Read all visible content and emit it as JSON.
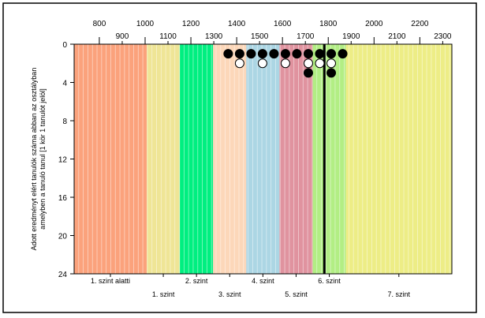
{
  "chart_data": {
    "type": "scatter",
    "title": "",
    "xlabel": "",
    "ylabel_lines": [
      "Adott eredményt elért tanulók száma abban az osztályban",
      "amelyben a tanuló tanul [1 kör 1 tanulót jelöl]"
    ],
    "xlim": [
      690,
      2340
    ],
    "ylim": [
      0,
      24
    ],
    "y_inverted": true,
    "x_ticks_top_row": [
      800,
      1000,
      1200,
      1400,
      1600,
      1800,
      2000,
      2200
    ],
    "x_ticks_bottom_row": [
      900,
      1100,
      1300,
      1500,
      1700,
      1900,
      2100,
      2300
    ],
    "y_ticks": [
      0,
      4,
      8,
      12,
      16,
      20,
      24
    ],
    "grid_minor_step": 20,
    "grid": true,
    "bands": [
      {
        "label": "1. szint alatti",
        "from": 690,
        "to": 1007,
        "color": "#fba27c",
        "label_row": "top"
      },
      {
        "label": "1. szint",
        "from": 1007,
        "to": 1152,
        "color": "#efe596",
        "label_row": "bottom"
      },
      {
        "label": "2. szint",
        "from": 1152,
        "to": 1297,
        "color": "#00ef80",
        "label_row": "top"
      },
      {
        "label": "3. szint",
        "from": 1297,
        "to": 1442,
        "color": "#fcd7b9",
        "label_row": "bottom"
      },
      {
        "label": "4. szint",
        "from": 1442,
        "to": 1587,
        "color": "#acd6e4",
        "label_row": "top"
      },
      {
        "label": "5. szint",
        "from": 1587,
        "to": 1732,
        "color": "#e0939f",
        "label_row": "bottom"
      },
      {
        "label": "6. szint",
        "from": 1732,
        "to": 1877,
        "color": "#b2ee84",
        "label_row": "top"
      },
      {
        "label": "7. szint",
        "from": 1877,
        "to": 2340,
        "color": "#eded86",
        "label_row": "bottom"
      }
    ],
    "marker_line": {
      "x": 1783,
      "color": "#000000"
    },
    "series": [
      {
        "style": "filled",
        "points": [
          {
            "x": 1363,
            "y": 1
          },
          {
            "x": 1413,
            "y": 1
          },
          {
            "x": 1463,
            "y": 1
          },
          {
            "x": 1513,
            "y": 1
          },
          {
            "x": 1563,
            "y": 1
          },
          {
            "x": 1613,
            "y": 1
          },
          {
            "x": 1663,
            "y": 1
          },
          {
            "x": 1713,
            "y": 1
          },
          {
            "x": 1763,
            "y": 1
          },
          {
            "x": 1813,
            "y": 1
          },
          {
            "x": 1863,
            "y": 1
          },
          {
            "x": 1713,
            "y": 3
          },
          {
            "x": 1813,
            "y": 3
          }
        ]
      },
      {
        "style": "hollow",
        "points": [
          {
            "x": 1413,
            "y": 2
          },
          {
            "x": 1513,
            "y": 2
          },
          {
            "x": 1613,
            "y": 2
          },
          {
            "x": 1713,
            "y": 2
          },
          {
            "x": 1763,
            "y": 2
          },
          {
            "x": 1813,
            "y": 2
          }
        ]
      }
    ]
  }
}
